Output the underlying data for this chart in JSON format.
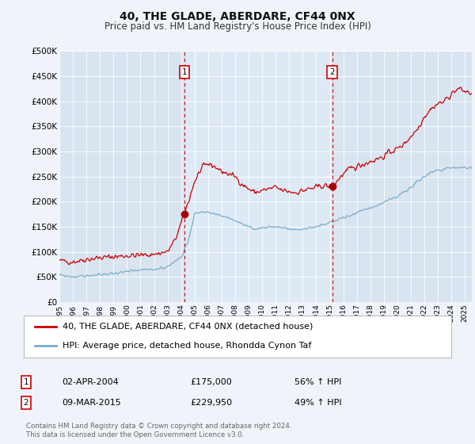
{
  "title": "40, THE GLADE, ABERDARE, CF44 0NX",
  "subtitle": "Price paid vs. HM Land Registry's House Price Index (HPI)",
  "bg_color": "#f0f4fa",
  "plot_bg_left": "#d8e4f0",
  "plot_bg_right": "#e4edf7",
  "red_line_label": "40, THE GLADE, ABERDARE, CF44 0NX (detached house)",
  "blue_line_label": "HPI: Average price, detached house, Rhondda Cynon Taf",
  "footer": "Contains HM Land Registry data © Crown copyright and database right 2024.\nThis data is licensed under the Open Government Licence v3.0.",
  "transaction1": {
    "label": "1",
    "date": "02-APR-2004",
    "price": "£175,000",
    "hpi": "56% ↑ HPI",
    "x_year": 2004.25,
    "y_val": 175000
  },
  "transaction2": {
    "label": "2",
    "date": "09-MAR-2015",
    "price": "£229,950",
    "hpi": "49% ↑ HPI",
    "x_year": 2015.18,
    "y_val": 229950
  },
  "ylim": [
    0,
    500000
  ],
  "xlim_start": 1995.0,
  "xlim_end": 2025.5,
  "red_line_color": "#cc0000",
  "blue_line_color": "#7aadcc",
  "dashed_line_color": "#cc0000",
  "dot_color": "#aa0000",
  "ytick_labels": [
    "£0",
    "£50K",
    "£100K",
    "£150K",
    "£200K",
    "£250K",
    "£300K",
    "£350K",
    "£400K",
    "£450K",
    "£500K"
  ],
  "xtick_vals": [
    1995,
    1996,
    1997,
    1998,
    1999,
    2000,
    2001,
    2002,
    2003,
    2004,
    2005,
    2006,
    2007,
    2008,
    2009,
    2010,
    2011,
    2012,
    2013,
    2014,
    2015,
    2016,
    2017,
    2018,
    2019,
    2020,
    2021,
    2022,
    2023,
    2024,
    2025
  ]
}
